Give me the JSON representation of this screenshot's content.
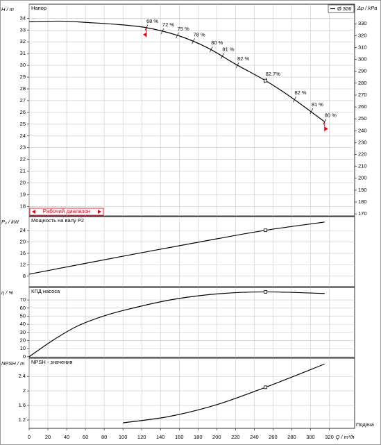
{
  "chart_data": [
    {
      "type": "line",
      "title": "Напор",
      "ylabel": "H / m",
      "y2label": "Δp / kPa",
      "x": [
        0,
        20,
        40,
        60,
        90,
        125,
        160,
        190,
        220,
        252,
        280,
        315
      ],
      "series": [
        {
          "name": "Ø 306",
          "color": "#000000",
          "values": [
            33.7,
            33.75,
            33.75,
            33.65,
            33.5,
            33.2,
            32.5,
            31.5,
            30.1,
            28.7,
            27.25,
            25.2
          ]
        }
      ],
      "xlim": [
        0,
        347
      ],
      "ylim": [
        17.2,
        35.2
      ],
      "yticks": [
        18,
        19,
        20,
        21,
        22,
        23,
        24,
        25,
        26,
        27,
        28,
        29,
        30,
        31,
        32,
        33,
        34
      ],
      "y2lim": [
        168.3,
        346.5
      ],
      "y2ticks": [
        170,
        180,
        190,
        200,
        210,
        220,
        230,
        240,
        250,
        260,
        270,
        280,
        290,
        300,
        310,
        320,
        330
      ],
      "grid": true,
      "legend": "upper right",
      "annotations": [
        {
          "x": 125,
          "y": 33.2,
          "label": "68 %"
        },
        {
          "x": 142,
          "y": 32.9,
          "label": "72 %"
        },
        {
          "x": 158,
          "y": 32.55,
          "label": "75 %"
        },
        {
          "x": 175,
          "y": 32.05,
          "label": "78 %"
        },
        {
          "x": 194,
          "y": 31.35,
          "label": "80 %"
        },
        {
          "x": 206,
          "y": 30.8,
          "label": "81 %"
        },
        {
          "x": 222,
          "y": 30.0,
          "label": "82 %"
        },
        {
          "x": 252,
          "y": 28.7,
          "label": "82.7%"
        },
        {
          "x": 283,
          "y": 27.1,
          "label": "82 %"
        },
        {
          "x": 301,
          "y": 26.1,
          "label": "81 %"
        },
        {
          "x": 315,
          "y": 25.2,
          "label": "80 %"
        }
      ],
      "operating_point": {
        "x": 252,
        "y": 28.7
      },
      "operating_range": {
        "label": "Рабочий диапазон",
        "x": [
          125,
          315
        ],
        "color": "#e0001a"
      }
    },
    {
      "type": "line",
      "title": "Мощность на валу P2",
      "ylabel": "P₂ / kW",
      "x": [
        0,
        100,
        200,
        252,
        315
      ],
      "series": [
        {
          "name": "P2",
          "color": "#000000",
          "values": [
            8.7,
            15,
            21.1,
            24.1,
            27
          ]
        }
      ],
      "xlim": [
        0,
        347
      ],
      "ylim": [
        4.3,
        28.9
      ],
      "yticks": [
        8,
        12,
        16,
        20,
        24
      ],
      "grid": true,
      "operating_point": {
        "x": 252,
        "y": 24.1
      }
    },
    {
      "type": "line",
      "title": "КПД насоса",
      "ylabel": "η / %",
      "x": [
        0,
        25,
        50,
        75,
        100,
        150,
        200,
        252,
        315
      ],
      "series": [
        {
          "name": "η",
          "color": "#000000",
          "values": [
            0,
            20,
            37,
            48.5,
            57,
            70,
            77.5,
            80,
            78
          ]
        }
      ],
      "xlim": [
        0,
        347
      ],
      "ylim": [
        -1,
        85.5
      ],
      "yticks": [
        0,
        10,
        20,
        30,
        40,
        50,
        60,
        70
      ],
      "grid": true,
      "operating_point": {
        "x": 252,
        "y": 80
      }
    },
    {
      "type": "line",
      "title": "NPSH - значения",
      "ylabel": "NPSH / m",
      "x": [
        100,
        150,
        200,
        252,
        315
      ],
      "series": [
        {
          "name": "NPSH",
          "color": "#000000",
          "values": [
            1.12,
            1.3,
            1.62,
            2.1,
            2.74
          ]
        }
      ],
      "xlim": [
        0,
        347
      ],
      "ylim": [
        0.97,
        2.9
      ],
      "yticks": [
        1.2,
        1.6,
        2,
        2.4
      ],
      "grid": true,
      "xticks": [
        0,
        20,
        40,
        60,
        80,
        100,
        120,
        140,
        160,
        180,
        200,
        220,
        240,
        260,
        280,
        300,
        320
      ],
      "x_label": "Q / m³/h",
      "x_title": "Подача",
      "operating_point": {
        "x": 252,
        "y": 2.1
      }
    }
  ]
}
